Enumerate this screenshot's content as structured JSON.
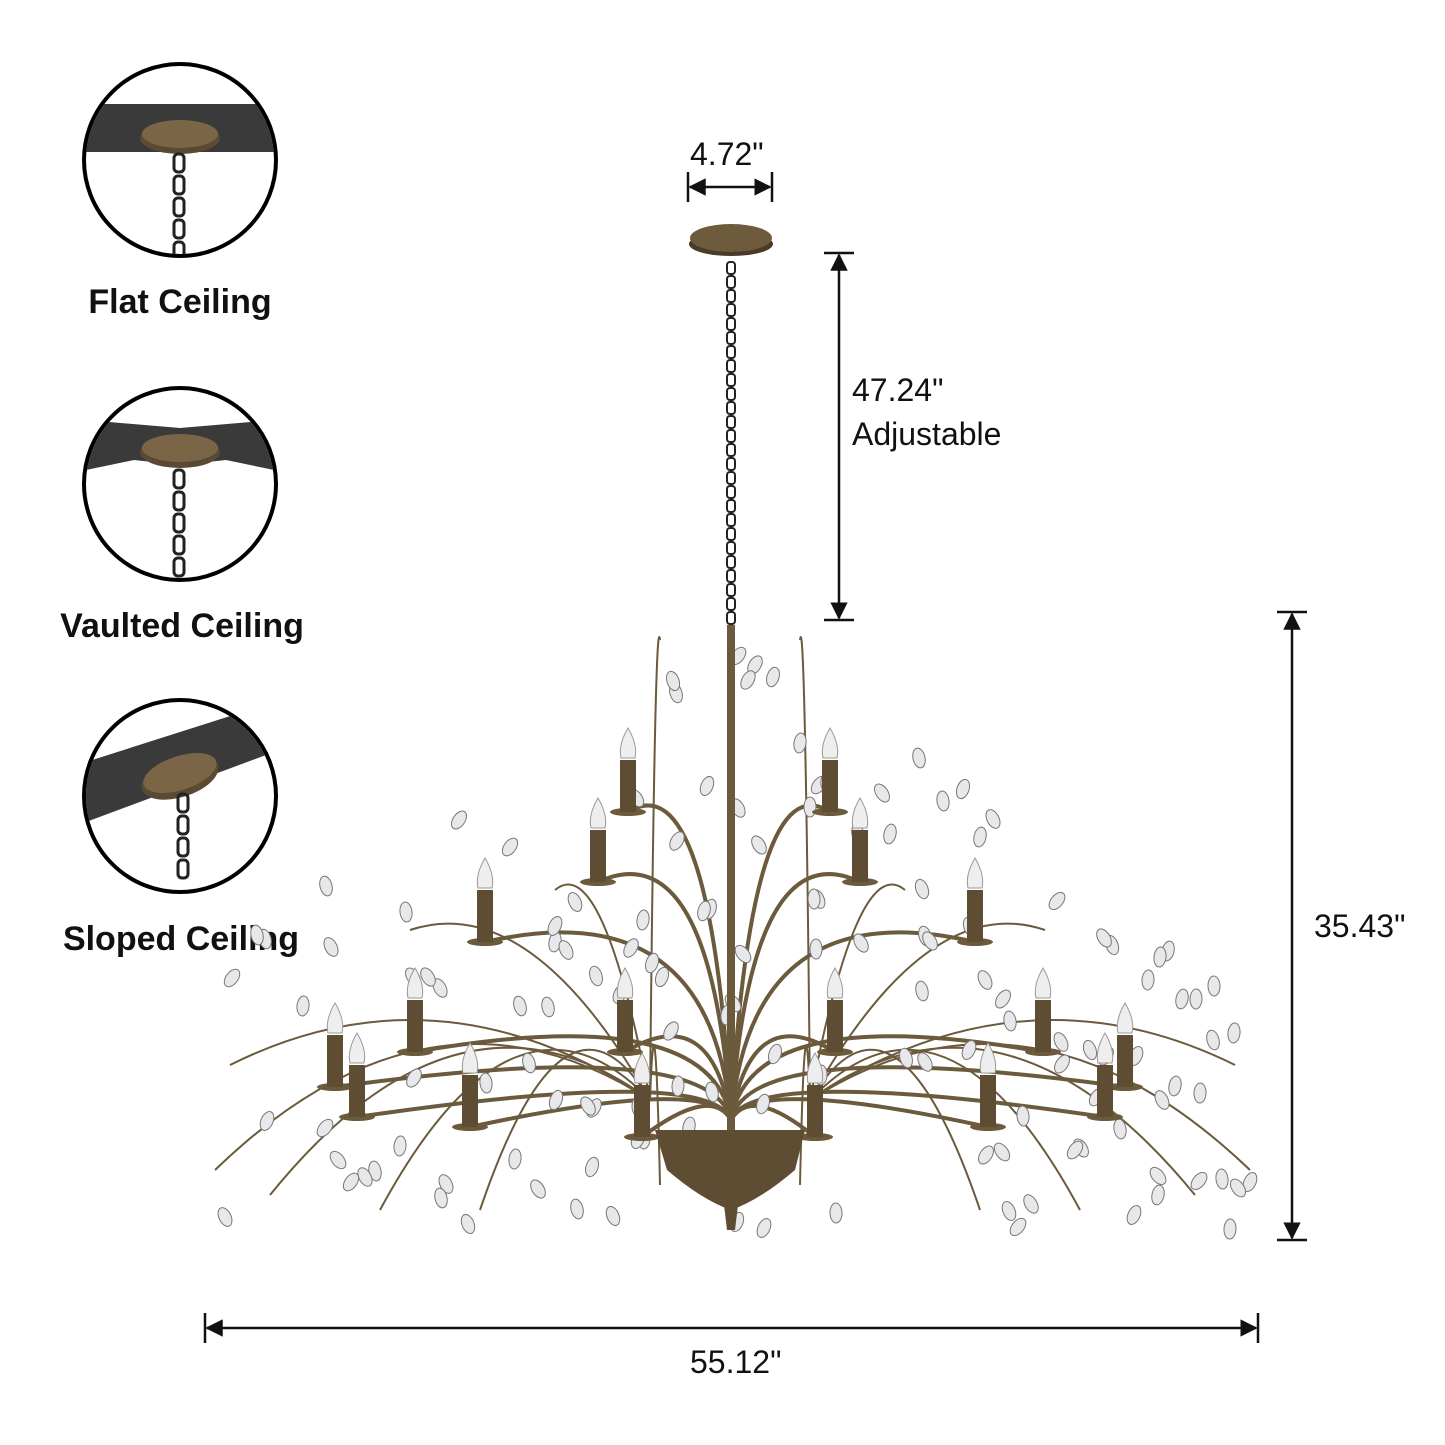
{
  "mounting_options": [
    {
      "label": "Flat Ceiling",
      "ceiling": "flat"
    },
    {
      "label": "Vaulted Ceiling",
      "ceiling": "vaulted"
    },
    {
      "label": "Sloped Ceiling",
      "ceiling": "sloped"
    }
  ],
  "dimensions": {
    "canopy_width": "4.72\"",
    "chain_length": "47.24\"",
    "chain_note": "Adjustable",
    "fixture_height": "35.43\"",
    "fixture_width": "55.12\""
  },
  "colors": {
    "finish": "#6b5a3c",
    "ceiling": "#3a3a3a",
    "line": "#111111"
  }
}
